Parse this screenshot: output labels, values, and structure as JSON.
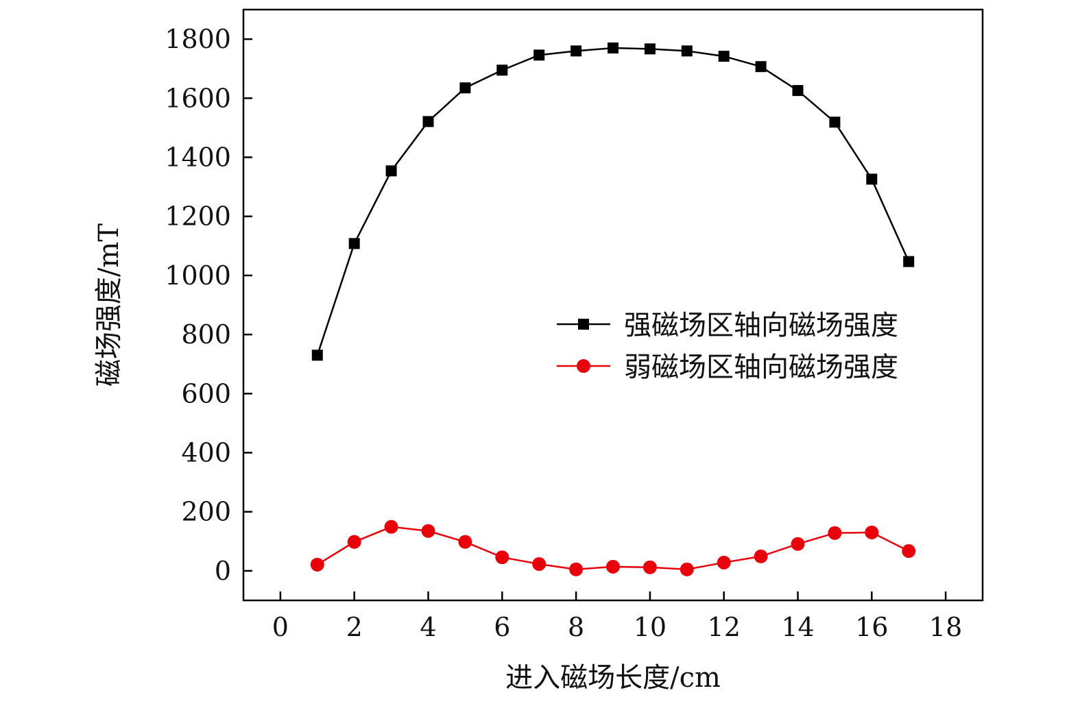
{
  "chart_data": {
    "type": "line",
    "title": "",
    "xlabel": "进入磁场长度/cm",
    "ylabel": "磁场强度/mT",
    "xlim": [
      -1,
      19
    ],
    "ylim": [
      -100,
      1900
    ],
    "xticks": [
      0,
      2,
      4,
      6,
      8,
      10,
      12,
      14,
      16,
      18
    ],
    "yticks": [
      0,
      200,
      400,
      600,
      800,
      1000,
      1200,
      1400,
      1600,
      1800
    ],
    "grid": false,
    "legend_position": "center-right",
    "x": [
      1,
      2,
      3,
      4,
      5,
      6,
      7,
      8,
      9,
      10,
      11,
      12,
      13,
      14,
      15,
      16,
      17
    ],
    "series": [
      {
        "name": "强磁场区轴向磁场强度",
        "color": "#000000",
        "marker": "square",
        "values": [
          730,
          1108,
          1354,
          1521,
          1635,
          1695,
          1746,
          1760,
          1770,
          1767,
          1760,
          1742,
          1707,
          1626,
          1519,
          1326,
          1047
        ]
      },
      {
        "name": "弱磁场区轴向磁场强度",
        "color": "#e8000b",
        "marker": "circle",
        "values": [
          21,
          98,
          149,
          135,
          98,
          46,
          23,
          5,
          14,
          12,
          5,
          28,
          49,
          91,
          128,
          130,
          67
        ]
      }
    ]
  }
}
